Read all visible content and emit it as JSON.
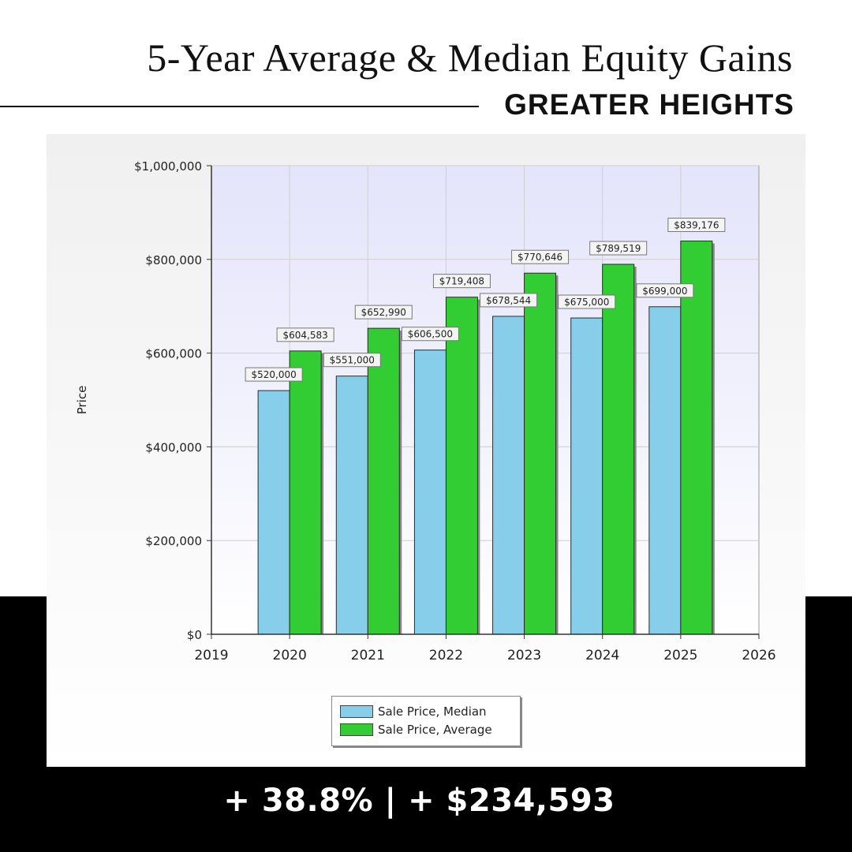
{
  "header": {
    "title": "5-Year Average & Median Equity Gains",
    "subtitle": "GREATER HEIGHTS"
  },
  "footer": {
    "stat": "+ 38.8%  |  + $234,593"
  },
  "chart_data": {
    "type": "bar",
    "ylabel": "Price",
    "xlabel": "",
    "ylim": [
      0,
      1000000
    ],
    "yticks": [
      0,
      200000,
      400000,
      600000,
      800000,
      1000000
    ],
    "ytick_labels": [
      "$0",
      "$200,000",
      "$400,000",
      "$600,000",
      "$800,000",
      "$1,000,000"
    ],
    "xlim": [
      2019,
      2026
    ],
    "xticks": [
      "2019",
      "2020",
      "2021",
      "2022",
      "2023",
      "2024",
      "2025",
      "2026"
    ],
    "categories": [
      "2020",
      "2021",
      "2022",
      "2023",
      "2024",
      "2025"
    ],
    "grid": true,
    "legend_position": "bottom-center",
    "series": [
      {
        "name": "Sale Price, Median",
        "color": "#87ceeb",
        "values": [
          520000,
          551000,
          606500,
          678544,
          675000,
          699000
        ],
        "labels": [
          "$520,000",
          "$551,000",
          "$606,500",
          "$678,544",
          "$675,000",
          "$699,000"
        ]
      },
      {
        "name": "Sale Price, Average",
        "color": "#32cd32",
        "values": [
          604583,
          652990,
          719408,
          770646,
          789519,
          839176
        ],
        "labels": [
          "$604,583",
          "$652,990",
          "$719,408",
          "$770,646",
          "$789,519",
          "$839,176"
        ]
      }
    ]
  }
}
